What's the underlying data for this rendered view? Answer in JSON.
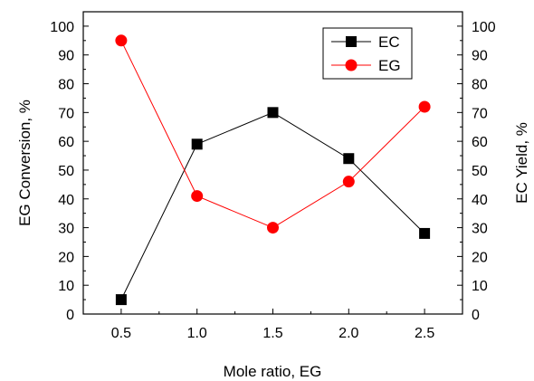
{
  "chart_data": {
    "type": "line",
    "xlabel": "Mole ratio, EG",
    "ylabel_left": "EG Conversion, %",
    "ylabel_right": "EC Yield, %",
    "x": [
      0.5,
      1.0,
      1.5,
      2.0,
      2.5
    ],
    "x_ticks": [
      "0.5",
      "1.0",
      "1.5",
      "2.0",
      "2.5"
    ],
    "xlim": [
      0.25,
      2.75
    ],
    "ylim": [
      0,
      105
    ],
    "y_ticks": [
      "0",
      "10",
      "20",
      "30",
      "40",
      "50",
      "60",
      "70",
      "80",
      "90",
      "100"
    ],
    "grid": false,
    "legend_position": "top-right",
    "series": [
      {
        "name": "EC",
        "values": [
          5,
          59,
          70,
          54,
          28
        ],
        "color": "#000000",
        "marker": "square"
      },
      {
        "name": "EG",
        "values": [
          95,
          41,
          30,
          46,
          72
        ],
        "color": "#ff0000",
        "marker": "circle"
      }
    ]
  }
}
